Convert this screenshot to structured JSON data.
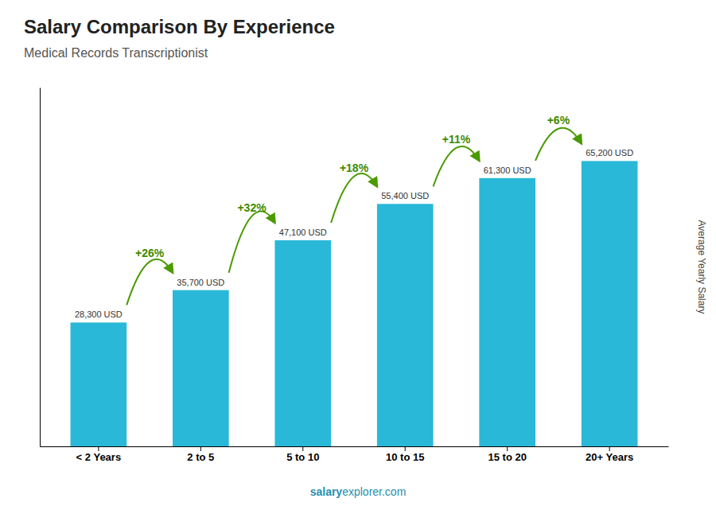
{
  "chart_data": {
    "type": "bar",
    "title": "Salary Comparison By Experience",
    "subtitle": "Medical Records Transcriptionist",
    "ylabel": "Average Yearly Salary",
    "categories": [
      "< 2 Years",
      "2 to 5",
      "5 to 10",
      "10 to 15",
      "15 to 20",
      "20+ Years"
    ],
    "values": [
      28300,
      35700,
      47100,
      55400,
      61300,
      65200
    ],
    "value_labels": [
      "28,300 USD",
      "35,700 USD",
      "47,100 USD",
      "55,400 USD",
      "61,300 USD",
      "65,200 USD"
    ],
    "data_labels": true,
    "annotations": [
      "+26%",
      "+32%",
      "+18%",
      "+11%",
      "+6%"
    ],
    "watermark": [
      "salary",
      "explorer.com"
    ],
    "color": "#29b8d8",
    "ylim": [
      0,
      82000
    ],
    "grid": false,
    "tick_labels": "x"
  }
}
